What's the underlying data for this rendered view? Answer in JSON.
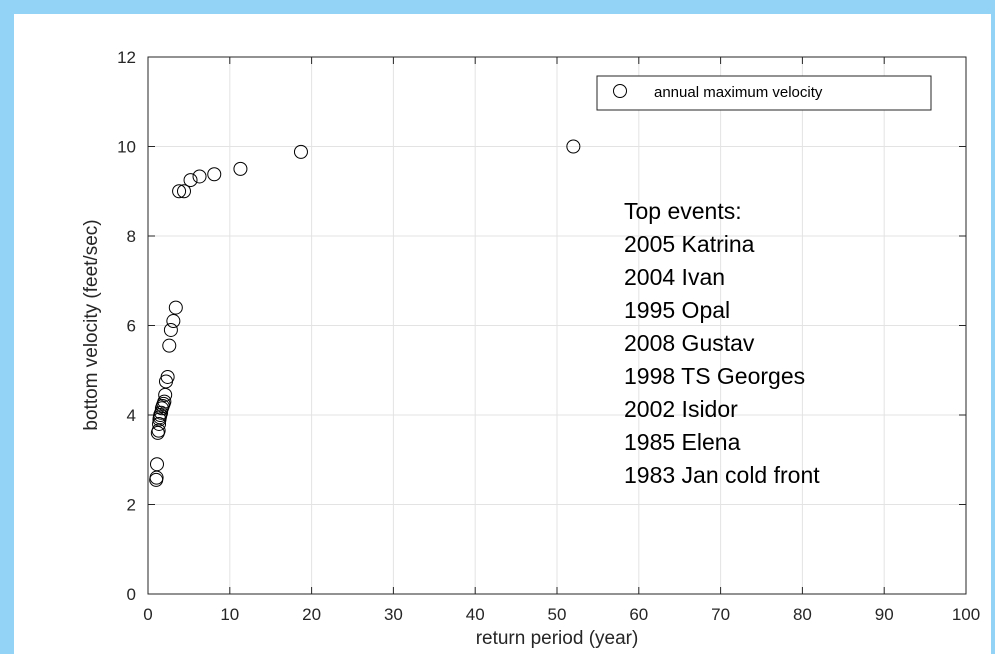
{
  "chart_data": {
    "type": "scatter",
    "xlabel": "return period (year)",
    "ylabel": "bottom velocity (feet/sec)",
    "xlim": [
      0,
      100
    ],
    "ylim": [
      0,
      12
    ],
    "xticks": [
      0,
      10,
      20,
      30,
      40,
      50,
      60,
      70,
      80,
      90,
      100
    ],
    "yticks": [
      0,
      2,
      4,
      6,
      8,
      10,
      12
    ],
    "grid": true,
    "legend": {
      "location": "top-right",
      "entries": [
        "annual maximum velocity"
      ]
    },
    "series": [
      {
        "name": "annual maximum velocity",
        "marker": "open-circle",
        "color": "#000000",
        "points": [
          [
            52.0,
            10.0
          ],
          [
            18.7,
            9.88
          ],
          [
            11.3,
            9.5
          ],
          [
            8.1,
            9.38
          ],
          [
            6.3,
            9.33
          ],
          [
            5.2,
            9.25
          ],
          [
            4.4,
            9.0
          ],
          [
            3.8,
            9.0
          ],
          [
            3.4,
            6.4
          ],
          [
            3.1,
            6.1
          ],
          [
            2.8,
            5.9
          ],
          [
            2.6,
            5.55
          ],
          [
            2.4,
            4.85
          ],
          [
            2.2,
            4.75
          ],
          [
            2.1,
            4.45
          ],
          [
            2.0,
            4.3
          ],
          [
            1.9,
            4.25
          ],
          [
            1.8,
            4.2
          ],
          [
            1.7,
            4.15
          ],
          [
            1.6,
            4.05
          ],
          [
            1.5,
            4.0
          ],
          [
            1.45,
            3.95
          ],
          [
            1.4,
            3.9
          ],
          [
            1.35,
            3.8
          ],
          [
            1.3,
            3.65
          ],
          [
            1.2,
            3.6
          ],
          [
            1.1,
            2.9
          ],
          [
            1.05,
            2.6
          ],
          [
            1.0,
            2.55
          ]
        ]
      }
    ],
    "annotation": {
      "lines": [
        "Top events:",
        "2005 Katrina",
        "2004 Ivan",
        "1995 Opal",
        "2008 Gustav",
        "1998 TS Georges",
        "2002 Isidor",
        "1985 Elena",
        "1983 Jan cold front"
      ]
    }
  }
}
